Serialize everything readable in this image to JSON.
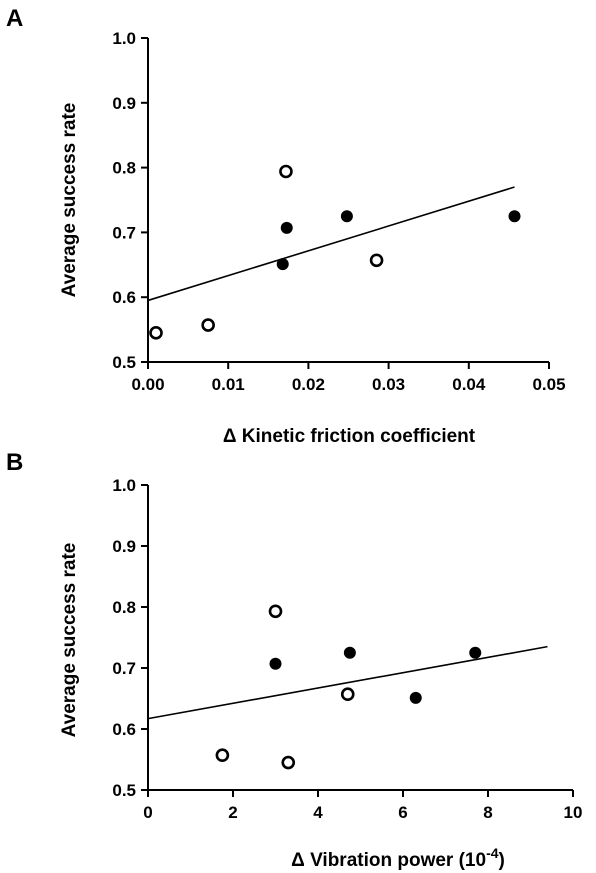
{
  "chart_data": [
    {
      "panel": "A",
      "type": "scatter",
      "xlabel": "Δ Kinetic friction coefficient",
      "ylabel": "Average success rate",
      "xlim": [
        0,
        0.05
      ],
      "ylim": [
        0.5,
        1.0
      ],
      "xticks": [
        "0.00",
        "0.01",
        "0.02",
        "0.03",
        "0.04",
        "0.05"
      ],
      "yticks": [
        "0.5",
        "0.6",
        "0.7",
        "0.8",
        "0.9",
        "1.0"
      ],
      "series": [
        {
          "marker": "open-circle",
          "points": [
            {
              "x": 0.001,
              "y": 0.545
            },
            {
              "x": 0.0075,
              "y": 0.557
            },
            {
              "x": 0.0172,
              "y": 0.794
            },
            {
              "x": 0.0285,
              "y": 0.657
            }
          ]
        },
        {
          "marker": "filled-circle",
          "points": [
            {
              "x": 0.0168,
              "y": 0.651
            },
            {
              "x": 0.0173,
              "y": 0.707
            },
            {
              "x": 0.0248,
              "y": 0.725
            },
            {
              "x": 0.0457,
              "y": 0.725
            }
          ]
        }
      ],
      "trendline": {
        "x": [
          0.0,
          0.0457
        ],
        "y": [
          0.595,
          0.77
        ]
      }
    },
    {
      "panel": "B",
      "type": "scatter",
      "xlabel": "Δ Vibration power (10",
      "xlabel_sup": "-4",
      "xlabel_end": ")",
      "ylabel": "Average success rate",
      "xlim": [
        0,
        10
      ],
      "ylim": [
        0.5,
        1.0
      ],
      "xticks": [
        "0",
        "2",
        "4",
        "6",
        "8",
        "10"
      ],
      "yticks": [
        "0.5",
        "0.6",
        "0.7",
        "0.8",
        "0.9",
        "1.0"
      ],
      "series": [
        {
          "marker": "open-circle",
          "points": [
            {
              "x": 1.75,
              "y": 0.557
            },
            {
              "x": 3.0,
              "y": 0.793
            },
            {
              "x": 3.3,
              "y": 0.545
            },
            {
              "x": 4.7,
              "y": 0.657
            }
          ]
        },
        {
          "marker": "filled-circle",
          "points": [
            {
              "x": 3.0,
              "y": 0.707
            },
            {
              "x": 4.75,
              "y": 0.725
            },
            {
              "x": 6.3,
              "y": 0.651
            },
            {
              "x": 7.7,
              "y": 0.725
            }
          ]
        }
      ],
      "trendline": {
        "x": [
          0.0,
          9.4
        ],
        "y": [
          0.617,
          0.735
        ]
      }
    }
  ]
}
